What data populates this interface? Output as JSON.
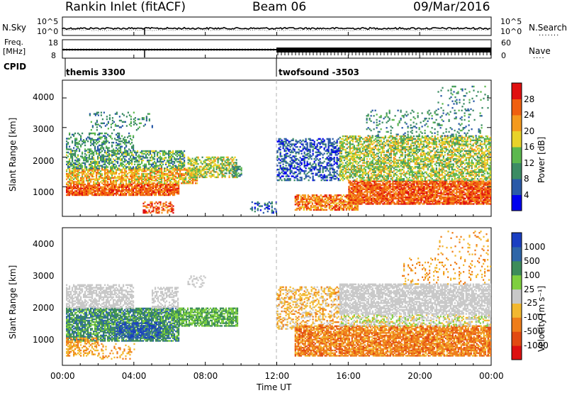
{
  "header": {
    "station": "Rankin Inlet (fitACF)",
    "beam": "Beam 06",
    "date": "09/Mar/2016"
  },
  "side_labels": {
    "nsky": "N.Sky",
    "nsearch": "N.Search",
    "freq_line1": "Freq.",
    "freq_line2": "[MHz]",
    "cpid": "CPID",
    "nave": "Nave"
  },
  "cpid_modes": [
    {
      "label": "themis 3300"
    },
    {
      "label": "twofsound -3503"
    }
  ],
  "chart_data": [
    {
      "type": "line",
      "name": "noise",
      "ylim_labels": [
        "10^0",
        "10^5"
      ],
      "ylim_right_labels": [
        "10^0",
        "10^5"
      ]
    },
    {
      "type": "line",
      "name": "frequency",
      "left_ticks": [
        "8",
        "18"
      ],
      "right_ticks": [
        "0",
        "60"
      ],
      "step_value_mhz": 11
    },
    {
      "type": "heatmap",
      "name": "power",
      "ylabel": "Slant Range [km]",
      "yticks": [
        "1000",
        "2000",
        "3000",
        "4000"
      ],
      "colorbar_label": "Power [dB]",
      "colorbar_ticks": [
        "4",
        "8",
        "12",
        "16",
        "20",
        "24",
        "28"
      ],
      "colors": [
        "#0000ee",
        "#2a5aa8",
        "#3c8c64",
        "#5cb84e",
        "#e8d22a",
        "#f59a1e",
        "#f06010",
        "#e01010"
      ]
    },
    {
      "type": "heatmap",
      "name": "velocity",
      "ylabel": "Slant Range [km]",
      "yticks": [
        "1000",
        "2000",
        "3000",
        "4000"
      ],
      "colorbar_label": "Velocity [m s⁻¹]",
      "colorbar_ticks": [
        "1000",
        "500",
        "100",
        "25",
        "-25",
        "-100",
        "-500",
        "-1000"
      ],
      "colors": [
        "#1a3fc2",
        "#2f66a8",
        "#3d8c5a",
        "#7fcf3f",
        "#c8c8c8",
        "#f2b830",
        "#ef7d1a",
        "#e24a12",
        "#dd1010"
      ]
    }
  ],
  "xaxis": {
    "label": "Time UT",
    "ticks": [
      "00:00",
      "04:00",
      "08:00",
      "12:00",
      "16:00",
      "20:00",
      "00:00"
    ]
  }
}
